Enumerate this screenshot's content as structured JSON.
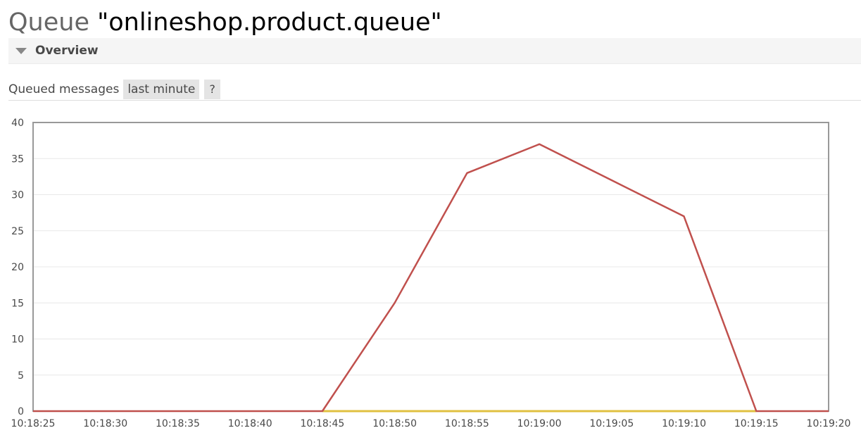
{
  "header": {
    "kind": "Queue",
    "queue_name": "\"onlineshop.product.queue\""
  },
  "overview": {
    "title": "Overview",
    "icon": "triangle-down-icon"
  },
  "chart_toolbar": {
    "label": "Queued messages",
    "range_label": "last minute",
    "help_label": "?"
  },
  "chart_data": {
    "type": "line",
    "title": "Queued messages",
    "x": [
      "10:18:25",
      "10:18:30",
      "10:18:35",
      "10:18:40",
      "10:18:45",
      "10:18:50",
      "10:18:55",
      "10:19:00",
      "10:19:05",
      "10:19:10",
      "10:19:15",
      "10:19:20"
    ],
    "yticks": [
      0,
      5,
      10,
      15,
      20,
      25,
      30,
      35,
      40
    ],
    "ylim": [
      0,
      40
    ],
    "grid": true,
    "series": [
      {
        "color": "#c0504d",
        "values": [
          0,
          0,
          0,
          0,
          0,
          15,
          33,
          37,
          32,
          27,
          0,
          0
        ]
      },
      {
        "color": "#e0c040",
        "values": [
          null,
          null,
          null,
          null,
          0,
          0,
          0,
          0,
          0,
          0,
          0,
          null
        ]
      }
    ]
  }
}
